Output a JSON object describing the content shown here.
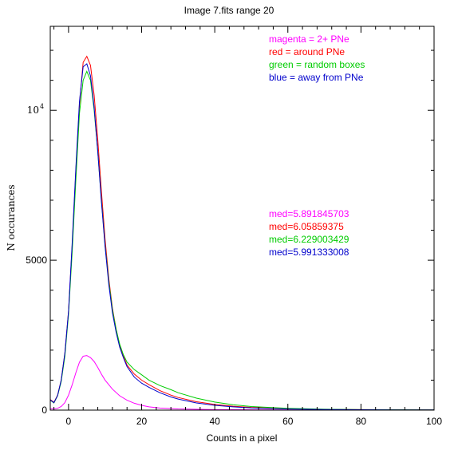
{
  "chart_data": {
    "type": "line",
    "title": "Image 7.fits   range 20",
    "xlabel": "Counts in a pixel",
    "ylabel": "N  occurances",
    "xlim": [
      -5,
      100
    ],
    "ylim": [
      0,
      12800
    ],
    "x_ticks": [
      {
        "value": 0,
        "label": "0"
      },
      {
        "value": 20,
        "label": "20"
      },
      {
        "value": 40,
        "label": "40"
      },
      {
        "value": 60,
        "label": "60"
      },
      {
        "value": 80,
        "label": "80"
      },
      {
        "value": 100,
        "label": "100"
      }
    ],
    "y_ticks": [
      {
        "value": 0,
        "label": "0"
      },
      {
        "value": 5000,
        "label": "5000"
      },
      {
        "value": 10000,
        "label": "10",
        "sup": "4"
      }
    ],
    "legend": [
      {
        "text": "magenta = 2+ PNe",
        "color": "#ff00ff"
      },
      {
        "text": "red = around PNe",
        "color": "#ff0000"
      },
      {
        "text": "green = random boxes",
        "color": "#00cc00"
      },
      {
        "text": "blue = away from PNe",
        "color": "#0000cc"
      }
    ],
    "medians": [
      {
        "text": "med=5.891845703",
        "color": "#ff00ff"
      },
      {
        "text": "med=6.05859375",
        "color": "#ff0000"
      },
      {
        "text": "med=6.229003429",
        "color": "#00cc00"
      },
      {
        "text": "med=5.991333008",
        "color": "#0000cc"
      }
    ],
    "series": [
      {
        "color": "#ff00ff",
        "x": [
          -5,
          -4,
          -3,
          -2,
          -1,
          0,
          1,
          2,
          3,
          4,
          5,
          6,
          7,
          8,
          9,
          10,
          12,
          14,
          16,
          18,
          20,
          22,
          25,
          30,
          40,
          60,
          80,
          100
        ],
        "y": [
          50,
          40,
          60,
          120,
          250,
          500,
          850,
          1250,
          1600,
          1800,
          1820,
          1750,
          1620,
          1420,
          1200,
          1000,
          700,
          480,
          330,
          230,
          160,
          110,
          70,
          40,
          15,
          5,
          2,
          1
        ]
      },
      {
        "color": "#ff0000",
        "x": [
          -5,
          -4,
          -3,
          -2,
          -1,
          0,
          1,
          2,
          3,
          4,
          5,
          6,
          7,
          8,
          9,
          10,
          11,
          12,
          13,
          14,
          15,
          16,
          18,
          20,
          22,
          25,
          28,
          30,
          35,
          40,
          45,
          50,
          60,
          70,
          80,
          90,
          100
        ],
        "y": [
          350,
          260,
          500,
          1000,
          1900,
          3300,
          5500,
          8000,
          10200,
          11600,
          11800,
          11500,
          10500,
          9000,
          7300,
          5700,
          4400,
          3400,
          2700,
          2150,
          1800,
          1500,
          1200,
          1000,
          850,
          650,
          500,
          420,
          280,
          190,
          130,
          90,
          45,
          25,
          15,
          10,
          5
        ]
      },
      {
        "color": "#00cc00",
        "x": [
          -5,
          -4,
          -3,
          -2,
          -1,
          0,
          1,
          2,
          3,
          4,
          5,
          6,
          7,
          8,
          9,
          10,
          11,
          12,
          13,
          14,
          15,
          16,
          18,
          20,
          22,
          25,
          28,
          30,
          35,
          40,
          45,
          50,
          60,
          70,
          80,
          90,
          100
        ],
        "y": [
          330,
          240,
          480,
          950,
          1800,
          3200,
          5300,
          7700,
          9900,
          11000,
          11300,
          11000,
          10000,
          8600,
          7000,
          5500,
          4300,
          3350,
          2700,
          2200,
          1850,
          1600,
          1350,
          1180,
          1000,
          820,
          680,
          580,
          400,
          270,
          180,
          120,
          60,
          30,
          15,
          10,
          5
        ]
      },
      {
        "color": "#0000cc",
        "x": [
          -5,
          -4,
          -3,
          -2,
          -1,
          0,
          1,
          2,
          3,
          4,
          5,
          6,
          7,
          8,
          9,
          10,
          11,
          12,
          13,
          14,
          15,
          16,
          18,
          20,
          22,
          25,
          28,
          30,
          35,
          40,
          45,
          50,
          60,
          70,
          80,
          90,
          100
        ],
        "y": [
          340,
          250,
          490,
          1000,
          1900,
          3300,
          5600,
          8100,
          10300,
          11450,
          11550,
          11150,
          10100,
          8600,
          6950,
          5450,
          4200,
          3250,
          2600,
          2100,
          1750,
          1450,
          1100,
          900,
          760,
          580,
          440,
          370,
          240,
          160,
          110,
          75,
          38,
          20,
          12,
          8,
          4
        ]
      }
    ]
  }
}
